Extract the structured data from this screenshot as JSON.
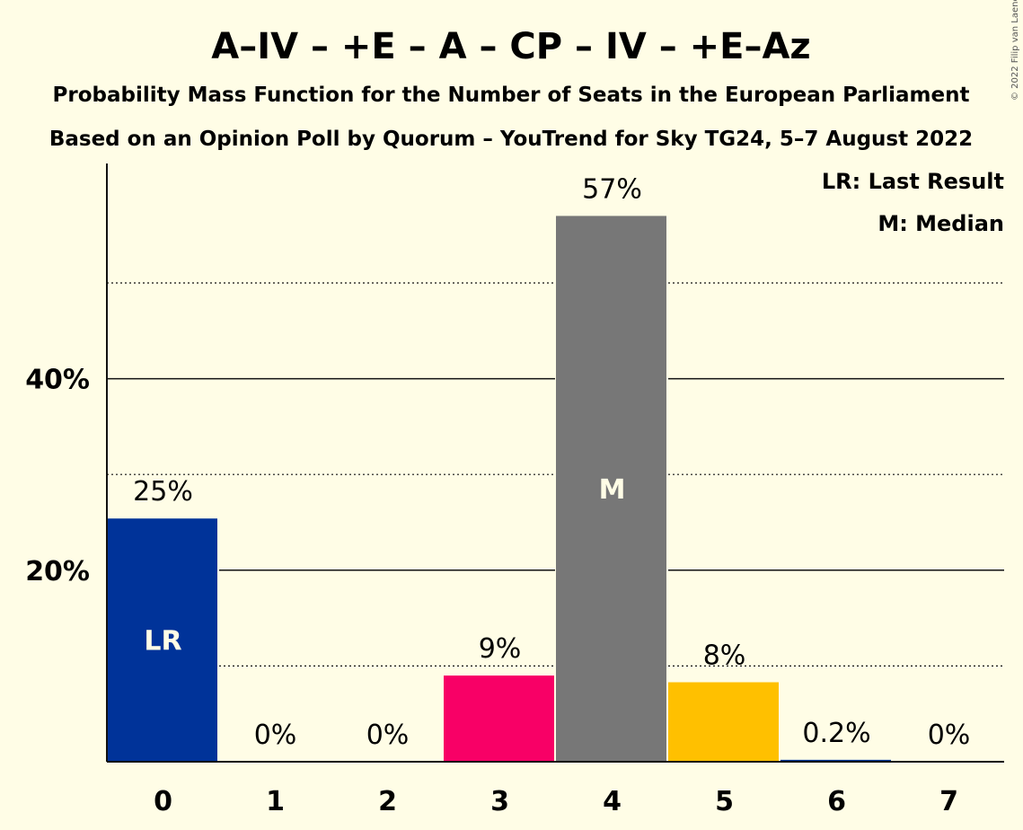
{
  "header": {
    "title": "A–IV – +E – A – CP – IV – +E–Az",
    "subtitle1": "Probability Mass Function for the Number of Seats in the European Parliament",
    "subtitle2": "Based on an Opinion Poll by Quorum – YouTrend for Sky TG24, 5–7 August 2022",
    "copyright": "© 2022 Filip van Laenen"
  },
  "legend": {
    "lr": "LR: Last Result",
    "median": "M: Median"
  },
  "chart_data": {
    "type": "bar",
    "categories": [
      "0",
      "1",
      "2",
      "3",
      "4",
      "5",
      "6",
      "7"
    ],
    "values": [
      25.4,
      0,
      0,
      9,
      57,
      8.3,
      0.2,
      0
    ],
    "value_labels": [
      "25%",
      "0%",
      "0%",
      "9%",
      "57%",
      "8%",
      "0.2%",
      "0%"
    ],
    "bar_colors": [
      "#003399",
      "#003399",
      "#003399",
      "#F80066",
      "#777777",
      "#FFC000",
      "#003399",
      "#003399"
    ],
    "in_bar_labels": [
      "LR",
      "",
      "",
      "",
      "M",
      "",
      "",
      ""
    ],
    "ylim": [
      0,
      62
    ],
    "yticks": [
      {
        "value": 20,
        "label": "20%"
      },
      {
        "value": 40,
        "label": "40%"
      }
    ],
    "minor_grid": [
      10,
      30,
      50
    ],
    "grid": true
  }
}
